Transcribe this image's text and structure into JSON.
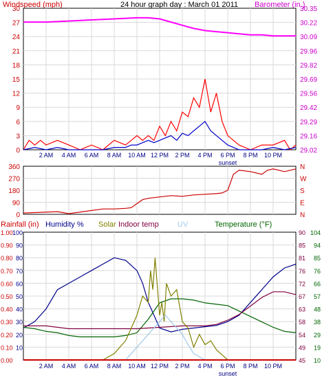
{
  "chart_data": [
    {
      "type": "line",
      "title": "24 hour graph day : March 01 2011",
      "left_axis_label": "Windspeed (mph)",
      "right_axis_label": "Barometer (in.)",
      "y_left_ticks": [
        "0",
        "3",
        "6",
        "9",
        "12",
        "15",
        "18",
        "21",
        "24",
        "27",
        "30"
      ],
      "y_left_range": [
        0,
        30
      ],
      "y_right_ticks": [
        "29.02",
        "29.16",
        "29.29",
        "29.42",
        "29.56",
        "29.69",
        "29.82",
        "29.96",
        "30.09",
        "30.22",
        "30.35"
      ],
      "y_right_range": [
        29.02,
        30.35
      ],
      "x_ticks": [
        "2 AM",
        "4 AM",
        "6 AM",
        "8 AM",
        "10 AM",
        "12 PM",
        "2 PM",
        "4 PM",
        "6 PM",
        "8 PM",
        "10 PM"
      ],
      "x_range_hours": [
        0,
        24
      ],
      "sunset_label": "sunset",
      "sunset_hour": 18,
      "grid": true,
      "colors": {
        "gust": "#ff0000",
        "wind": "#0000cc",
        "barometer": "#ff00ff",
        "left_axis": "#cc0000",
        "right_axis": "#cc00cc",
        "title": "#000000"
      },
      "series": [
        {
          "key": "barometer",
          "axis": "right",
          "x": [
            0,
            2,
            4,
            6,
            8,
            10,
            11,
            12,
            13,
            14,
            15,
            16,
            17,
            18,
            19,
            20,
            21,
            22,
            23,
            24
          ],
          "values": [
            30.22,
            30.22,
            30.23,
            30.24,
            30.25,
            30.26,
            30.26,
            30.25,
            30.22,
            30.19,
            30.16,
            30.14,
            30.13,
            30.12,
            30.11,
            30.1,
            30.1,
            30.09,
            30.09,
            30.09
          ]
        },
        {
          "key": "gust",
          "axis": "left",
          "x": [
            0,
            0.5,
            1,
            1.5,
            2,
            3,
            4,
            5,
            6,
            7,
            8,
            9,
            9.5,
            10,
            10.5,
            11,
            11.5,
            12,
            12.5,
            13,
            13.5,
            14,
            14.5,
            15,
            15.5,
            16,
            16.5,
            17,
            17.5,
            18,
            18.5,
            19,
            20,
            21,
            22,
            23,
            23.5,
            24
          ],
          "values": [
            0,
            2,
            1,
            2,
            1,
            2,
            1,
            0,
            1,
            0,
            2,
            1,
            2,
            3,
            2,
            3,
            2,
            5,
            3,
            6,
            4,
            8,
            7,
            11,
            9,
            15,
            8,
            12,
            6,
            3,
            2,
            1,
            0,
            1,
            1,
            2,
            0,
            1
          ]
        },
        {
          "key": "wind",
          "axis": "left",
          "x": [
            0,
            1,
            2,
            3,
            4,
            5,
            6,
            7,
            8,
            9,
            9.5,
            10,
            10.5,
            11,
            11.5,
            12,
            12.5,
            13,
            13.5,
            14,
            14.5,
            15,
            15.5,
            16,
            16.5,
            17,
            17.5,
            18,
            18.5,
            19,
            20,
            21,
            22,
            23,
            24
          ],
          "values": [
            0,
            0.5,
            0,
            0.5,
            0,
            0,
            0,
            0,
            0.5,
            0.5,
            1,
            1,
            1.5,
            2,
            1.5,
            2,
            2.5,
            3,
            2,
            3.5,
            3,
            4,
            5,
            6,
            4,
            3,
            2,
            1,
            0.5,
            0,
            0,
            0,
            0.5,
            0,
            0.5
          ]
        }
      ]
    },
    {
      "type": "line",
      "title": "",
      "y_left_ticks": [
        "360",
        "270",
        "180",
        "90",
        "0"
      ],
      "y_left_range": [
        0,
        360
      ],
      "y_right_ticks": [
        "N",
        "W",
        "S",
        "E",
        "N"
      ],
      "x_ticks": [],
      "x_range_hours": [
        0,
        24
      ],
      "grid": true,
      "colors": {
        "direction": "#cc0000",
        "axis": "#cc0000"
      },
      "series": [
        {
          "key": "direction",
          "x": [
            0,
            3,
            4,
            7,
            8,
            9,
            9.5,
            10,
            10.5,
            11,
            12,
            13,
            14,
            15,
            16,
            17,
            17.5,
            18,
            18.5,
            19,
            20,
            21,
            21.5,
            22,
            23,
            24
          ],
          "values": [
            10,
            20,
            5,
            40,
            40,
            45,
            50,
            80,
            110,
            120,
            130,
            140,
            135,
            145,
            150,
            155,
            160,
            180,
            300,
            330,
            320,
            300,
            330,
            340,
            320,
            340
          ]
        }
      ]
    },
    {
      "type": "line",
      "title": "",
      "legend": [
        "Rainfall (in)",
        "Humidity %",
        "Solar",
        "Indoor temp",
        "UV",
        "Temperature (°F)"
      ],
      "y_axes": {
        "rainfall": [
          "0.00",
          "0.10",
          "0.20",
          "0.30",
          "0.40",
          "0.50",
          "0.60",
          "0.70",
          "0.80",
          "0.90",
          "1.00"
        ],
        "humidity": [
          "10",
          "20",
          "30",
          "40",
          "50",
          "60",
          "70",
          "80",
          "90",
          "100"
        ],
        "solar": [
          "0",
          "100",
          "200",
          "300",
          "400",
          "500",
          "600",
          "700",
          "800",
          "900",
          "1000"
        ],
        "indoor": [
          "45",
          "49",
          "54",
          "58",
          "63",
          "67",
          "72",
          "76",
          "81",
          "85",
          "90"
        ],
        "temperature": [
          "10",
          "19",
          "29",
          "38",
          "48",
          "57",
          "66",
          "76",
          "85",
          "94",
          "104"
        ]
      },
      "x_ticks": [
        "2 AM",
        "4 AM",
        "6 AM",
        "8 AM",
        "10 AM",
        "12 PM",
        "2 PM",
        "4 PM",
        "6 PM",
        "8 PM",
        "10 PM"
      ],
      "x_range_hours": [
        0,
        24
      ],
      "sunset_label": "sunset",
      "grid": true,
      "colors": {
        "rainfall": "#cc0000",
        "humidity": "#00008b",
        "solar": "#808000",
        "indoor": "#800040",
        "uv": "#a0c8e8",
        "temperature": "#006400"
      },
      "series": [
        {
          "key": "humidity",
          "range": [
            0,
            100
          ],
          "x": [
            0,
            1,
            2,
            3,
            4,
            5,
            6,
            7,
            8,
            9,
            10,
            10.5,
            11,
            11.5,
            12,
            13,
            14,
            15,
            16,
            17,
            18,
            19,
            20,
            21,
            22,
            23,
            24
          ],
          "values": [
            25,
            30,
            40,
            55,
            60,
            65,
            70,
            75,
            80,
            78,
            70,
            60,
            45,
            35,
            25,
            22,
            24,
            25,
            26,
            27,
            30,
            35,
            45,
            55,
            65,
            72,
            75
          ]
        },
        {
          "key": "temperature",
          "range": [
            10,
            104
          ],
          "x": [
            0,
            1,
            2,
            3,
            4,
            5,
            6,
            7,
            8,
            9,
            10,
            11,
            12,
            13,
            14,
            15,
            16,
            17,
            18,
            19,
            20,
            21,
            22,
            23,
            24
          ],
          "values": [
            34,
            33,
            31,
            30,
            28,
            27,
            27,
            27,
            27,
            28,
            30,
            40,
            52,
            55,
            55,
            54,
            52,
            51,
            50,
            46,
            42,
            38,
            34,
            31,
            30
          ]
        },
        {
          "key": "indoor",
          "range": [
            45,
            90
          ],
          "x": [
            0,
            2,
            4,
            6,
            8,
            10,
            12,
            14,
            16,
            17,
            18,
            19,
            20,
            21,
            22,
            23,
            24
          ],
          "values": [
            57,
            57,
            56,
            56,
            56,
            56,
            56.5,
            57,
            57,
            57.5,
            59,
            61,
            64,
            67,
            69,
            69,
            68
          ]
        },
        {
          "key": "solar",
          "range": [
            0,
            1000
          ],
          "x": [
            0,
            6.5,
            7,
            8,
            9,
            9.5,
            10,
            10.5,
            11,
            11.2,
            11.4,
            11.6,
            12,
            12.2,
            12.4,
            12.6,
            13,
            13.5,
            14,
            14.5,
            15,
            15.5,
            16,
            16.5,
            17,
            17.5,
            18,
            24
          ],
          "values": [
            0,
            0,
            0,
            50,
            150,
            250,
            350,
            500,
            450,
            700,
            550,
            800,
            350,
            450,
            300,
            600,
            500,
            550,
            300,
            250,
            100,
            200,
            120,
            150,
            80,
            40,
            0,
            0
          ]
        },
        {
          "key": "uv",
          "range": [
            0,
            1000
          ],
          "x": [
            0,
            9,
            9.5,
            10,
            10.5,
            11,
            11.5,
            12,
            12.5,
            13,
            13.5,
            14,
            14.5,
            15,
            16,
            24
          ],
          "values": [
            0,
            0,
            50,
            100,
            150,
            200,
            250,
            300,
            350,
            300,
            250,
            200,
            120,
            50,
            0,
            0
          ]
        },
        {
          "key": "rainfall",
          "range": [
            0,
            1
          ],
          "x": [
            0,
            24
          ],
          "values": [
            0,
            0
          ]
        }
      ]
    }
  ]
}
